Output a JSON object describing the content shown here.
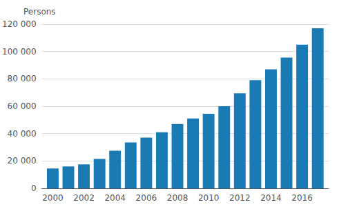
{
  "chart_data": {
    "type": "bar",
    "ylabel": "Persons",
    "x": [
      2000,
      2001,
      2002,
      2003,
      2004,
      2005,
      2006,
      2007,
      2008,
      2009,
      2010,
      2011,
      2012,
      2013,
      2014,
      2015,
      2016,
      2017
    ],
    "values": [
      14500,
      16000,
      17500,
      21500,
      27500,
      33500,
      37000,
      41000,
      47000,
      51000,
      54500,
      60000,
      69500,
      79000,
      87000,
      95500,
      105000,
      117000
    ],
    "color": "#1a7ab4",
    "xlim": [
      1999.3,
      2017.7
    ],
    "xticks": [
      2000,
      2002,
      2004,
      2006,
      2008,
      2010,
      2012,
      2014,
      2016
    ],
    "ylim": [
      0,
      120000
    ],
    "yticks": [
      0,
      {
        "value": 20000,
        "label": "20 000"
      },
      {
        "value": 40000,
        "label": "40 000"
      },
      {
        "value": 60000,
        "label": "60 000"
      },
      {
        "value": 80000,
        "label": "80 000"
      },
      {
        "value": 100000,
        "label": "100 000"
      },
      {
        "value": 120000,
        "label": "120 000"
      }
    ],
    "grid": true
  }
}
